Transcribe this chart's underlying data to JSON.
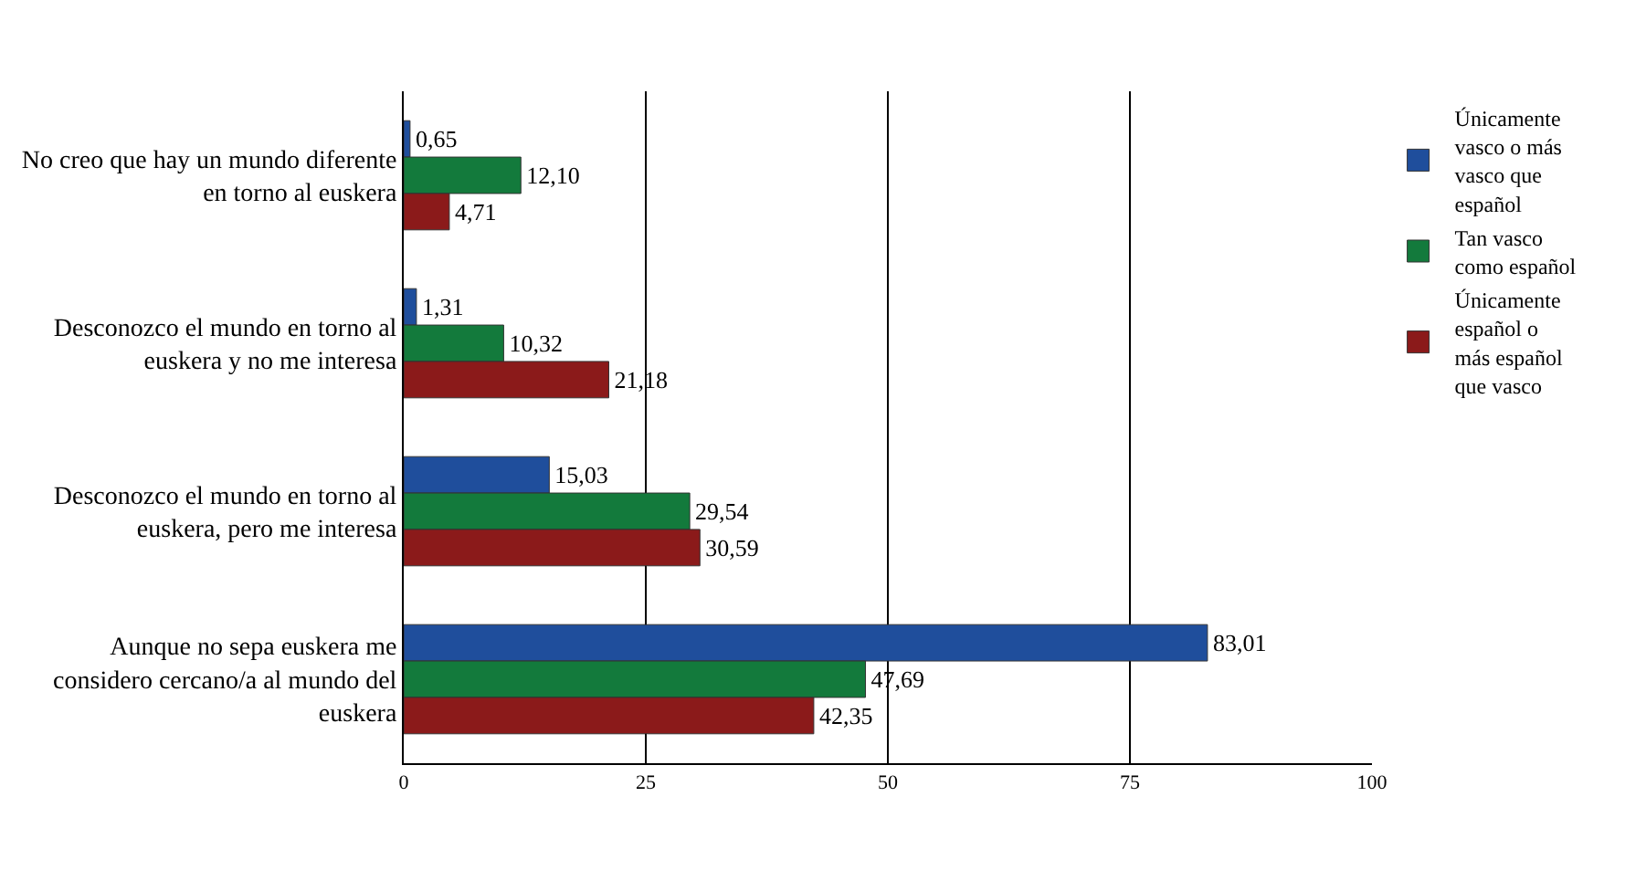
{
  "chart_data": {
    "type": "bar",
    "orientation": "horizontal",
    "categories": [
      "No creo que hay un mundo diferente en torno al euskera",
      "Desconozco el mundo en torno al euskera y no me interesa",
      "Desconozco el mundo en torno al euskera, pero me interesa",
      "Aunque no sepa euskera me considero cercano/a al mundo del euskera"
    ],
    "series": [
      {
        "name": "Únicamente vasco o más vasco que español",
        "color": "#1f4e9c",
        "values": [
          0.65,
          1.31,
          15.03,
          83.01
        ],
        "value_labels": [
          "0,65",
          "1,31",
          "15,03",
          "83,01"
        ]
      },
      {
        "name": "Tan vasco como español",
        "color": "#137a3c",
        "values": [
          12.1,
          10.32,
          29.54,
          47.69
        ],
        "value_labels": [
          "12,10",
          "10,32",
          "29,54",
          "47,69"
        ]
      },
      {
        "name": "Únicamente español o más español que vasco",
        "color": "#8b1a1a",
        "values": [
          4.71,
          21.18,
          30.59,
          42.35
        ],
        "value_labels": [
          "4,71",
          "21,18",
          "30,59",
          "42,35"
        ]
      }
    ],
    "xlim": [
      0,
      100
    ],
    "xticks": [
      0,
      25,
      50,
      75,
      100
    ],
    "grid": "x",
    "legend": "right"
  }
}
